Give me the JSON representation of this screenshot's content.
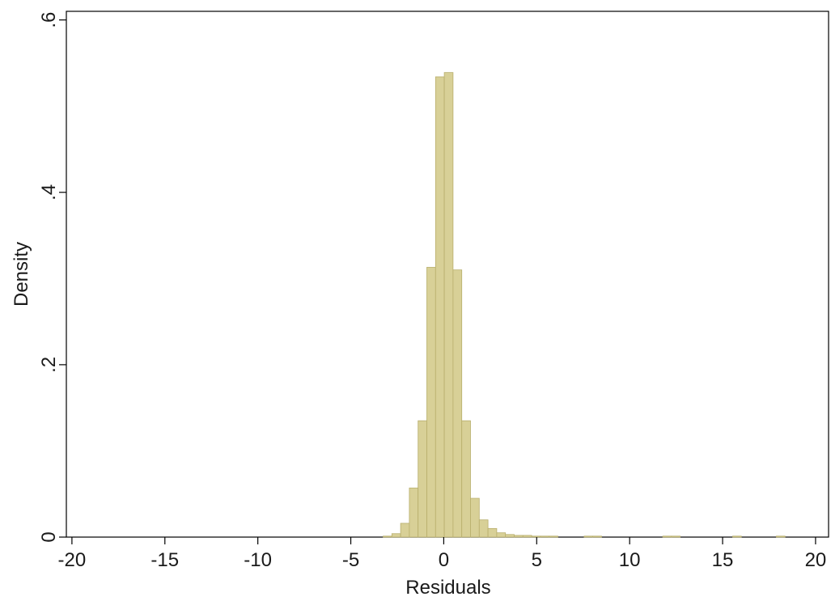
{
  "chart_data": {
    "type": "bar",
    "title": "",
    "xlabel": "Residuals",
    "ylabel": "Density",
    "xlim": [
      -20.3,
      20.7
    ],
    "ylim": [
      0,
      0.61
    ],
    "grid": false,
    "legend": "none",
    "x_ticks": [
      -20,
      -15,
      -10,
      -5,
      0,
      5,
      10,
      15,
      20
    ],
    "x_tick_labels": [
      "-20",
      "-15",
      "-10",
      "-5",
      "0",
      "5",
      "10",
      "15",
      "20"
    ],
    "y_ticks": [
      0,
      0.2,
      0.4,
      0.6
    ],
    "y_tick_labels": [
      "0",
      ".2",
      ".4",
      ".6"
    ],
    "bin_width": 0.47,
    "bar_fill": "#d8d097",
    "bar_stroke": "#b8ae6c",
    "bins": [
      {
        "x0": -3.26,
        "density": 0.001
      },
      {
        "x0": -2.79,
        "density": 0.004
      },
      {
        "x0": -2.32,
        "density": 0.016
      },
      {
        "x0": -1.85,
        "density": 0.057
      },
      {
        "x0": -1.38,
        "density": 0.135
      },
      {
        "x0": -0.91,
        "density": 0.313
      },
      {
        "x0": -0.44,
        "density": 0.534
      },
      {
        "x0": 0.03,
        "density": 0.539
      },
      {
        "x0": 0.5,
        "density": 0.31
      },
      {
        "x0": 0.97,
        "density": 0.135
      },
      {
        "x0": 1.44,
        "density": 0.045
      },
      {
        "x0": 1.91,
        "density": 0.02
      },
      {
        "x0": 2.38,
        "density": 0.01
      },
      {
        "x0": 2.85,
        "density": 0.005
      },
      {
        "x0": 3.32,
        "density": 0.003
      },
      {
        "x0": 3.79,
        "density": 0.002
      },
      {
        "x0": 4.26,
        "density": 0.002
      },
      {
        "x0": 4.73,
        "density": 0.001
      },
      {
        "x0": 5.2,
        "density": 0.001
      },
      {
        "x0": 5.67,
        "density": 0.001
      },
      {
        "x0": 7.55,
        "density": 0.001
      },
      {
        "x0": 8.02,
        "density": 0.001
      },
      {
        "x0": 11.78,
        "density": 0.001
      },
      {
        "x0": 12.25,
        "density": 0.001
      },
      {
        "x0": 15.54,
        "density": 0.001
      },
      {
        "x0": 17.89,
        "density": 0.001
      }
    ]
  }
}
